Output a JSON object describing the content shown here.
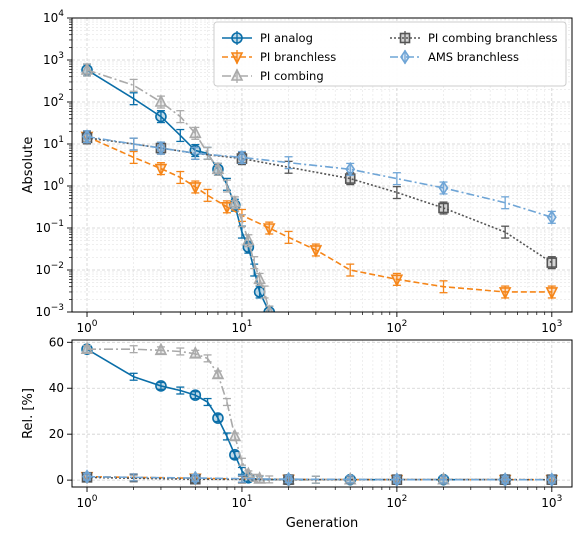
{
  "chart_data": [
    {
      "type": "line",
      "panel": "top",
      "ylabel": "Absolute",
      "xlabel": "",
      "xscale": "log",
      "yscale": "log",
      "xlim": [
        0.8,
        1350
      ],
      "ylim": [
        0.001,
        10000
      ],
      "grid": true,
      "legend_position": "top-right",
      "x_ticks": [
        {
          "value": 1,
          "base": "10",
          "exp": "0"
        },
        {
          "value": 10,
          "base": "10",
          "exp": "1"
        },
        {
          "value": 100,
          "base": "10",
          "exp": "2"
        },
        {
          "value": 1000,
          "base": "10",
          "exp": "3"
        }
      ],
      "y_ticks": [
        {
          "value": 0.001,
          "base": "10",
          "exp": "−3"
        },
        {
          "value": 0.01,
          "base": "10",
          "exp": "−2"
        },
        {
          "value": 0.1,
          "base": "10",
          "exp": "−1"
        },
        {
          "value": 1,
          "base": "10",
          "exp": "0"
        },
        {
          "value": 10,
          "base": "10",
          "exp": "1"
        },
        {
          "value": 100,
          "base": "10",
          "exp": "2"
        },
        {
          "value": 1000,
          "base": "10",
          "exp": "3"
        },
        {
          "value": 10000,
          "base": "10",
          "exp": "4"
        }
      ],
      "series": [
        {
          "name": "PI analog",
          "color": "#0a6ea8",
          "dash": "",
          "marker": "circle",
          "x": [
            1,
            2,
            3,
            4,
            5,
            6,
            7,
            8,
            9,
            10,
            11,
            12,
            13,
            15
          ],
          "y": [
            580,
            120,
            45,
            16,
            7,
            6,
            2.5,
            1.1,
            0.35,
            0.08,
            0.035,
            0.01,
            0.003,
            0.001
          ]
        },
        {
          "name": "PI branchless",
          "color": "#f58518",
          "dash": "6 3",
          "marker": "triangle-down",
          "x": [
            1,
            2,
            3,
            4,
            5,
            6,
            8,
            10,
            15,
            20,
            30,
            50,
            100,
            200,
            500,
            1000
          ],
          "y": [
            15,
            4.8,
            2.6,
            1.6,
            0.95,
            0.6,
            0.32,
            0.2,
            0.1,
            0.06,
            0.03,
            0.01,
            0.006,
            0.004,
            0.003,
            0.003
          ]
        },
        {
          "name": "PI combing",
          "color": "#aaaaaa",
          "dash": "9 3 2 3",
          "marker": "triangle-up",
          "x": [
            1,
            2,
            3,
            4,
            5,
            6,
            7,
            8,
            9,
            10,
            11,
            12,
            13,
            14,
            15
          ],
          "y": [
            580,
            250,
            100,
            45,
            18,
            6,
            2.5,
            1,
            0.4,
            0.15,
            0.05,
            0.015,
            0.006,
            0.003,
            0.001
          ]
        },
        {
          "name": "PI combing branchless",
          "color": "#555555",
          "dash": "2 2",
          "marker": "square",
          "x": [
            1,
            2,
            3,
            5,
            10,
            20,
            50,
            100,
            200,
            500,
            1000
          ],
          "y": [
            14,
            10,
            8,
            6,
            4.5,
            2.8,
            1.5,
            0.7,
            0.3,
            0.08,
            0.015
          ]
        },
        {
          "name": "AMS branchless",
          "color": "#6fa5d6",
          "dash": "8 3 2 3",
          "marker": "diamond",
          "x": [
            1,
            2,
            3,
            5,
            10,
            20,
            50,
            100,
            200,
            500,
            1000
          ],
          "y": [
            15,
            10,
            8,
            6,
            4.8,
            3.6,
            2.5,
            1.5,
            0.9,
            0.4,
            0.18
          ]
        }
      ]
    },
    {
      "type": "line",
      "panel": "bottom",
      "ylabel": "Rel. [%]",
      "xlabel": "Generation",
      "xscale": "log",
      "yscale": "linear",
      "xlim": [
        0.8,
        1350
      ],
      "ylim": [
        -3,
        61
      ],
      "grid": true,
      "x_ticks": [
        {
          "value": 1,
          "base": "10",
          "exp": "0"
        },
        {
          "value": 10,
          "base": "10",
          "exp": "1"
        },
        {
          "value": 100,
          "base": "10",
          "exp": "2"
        },
        {
          "value": 1000,
          "base": "10",
          "exp": "3"
        }
      ],
      "y_ticks": [
        {
          "value": 0,
          "label": "0"
        },
        {
          "value": 20,
          "label": "20"
        },
        {
          "value": 40,
          "label": "40"
        },
        {
          "value": 60,
          "label": "60"
        }
      ],
      "series": [
        {
          "name": "PI analog",
          "color": "#0a6ea8",
          "dash": "",
          "marker": "circle",
          "x": [
            1,
            2,
            3,
            4,
            5,
            6,
            7,
            8,
            9,
            10,
            11,
            13,
            20,
            30,
            50,
            100,
            200,
            500
          ],
          "y": [
            57,
            45,
            41,
            39,
            37,
            34,
            27,
            19,
            11,
            4,
            1,
            0.3,
            0.2,
            0.2,
            0.2,
            0.2,
            0.2,
            0.2
          ]
        },
        {
          "name": "PI branchless",
          "color": "#f58518",
          "dash": "6 3",
          "marker": "triangle-down",
          "x": [
            1,
            2,
            5,
            10,
            20,
            50,
            100,
            200,
            500,
            1000
          ],
          "y": [
            1.5,
            1.2,
            0.8,
            0.5,
            0.3,
            0.2,
            0.2,
            0.2,
            0.2,
            0.2
          ]
        },
        {
          "name": "PI combing",
          "color": "#aaaaaa",
          "dash": "9 3 2 3",
          "marker": "triangle-up",
          "x": [
            1,
            2,
            3,
            4,
            5,
            6,
            7,
            8,
            9,
            10,
            11,
            12,
            13,
            15,
            20,
            30,
            50,
            100,
            200,
            500
          ],
          "y": [
            57,
            57,
            56.5,
            56,
            55,
            53,
            46,
            34,
            19,
            8,
            2.5,
            1,
            0.5,
            0.3,
            0.2,
            0.2,
            0.2,
            0.2,
            0.2,
            0.2
          ]
        },
        {
          "name": "PI combing branchless",
          "color": "#555555",
          "dash": "2 2",
          "marker": "square",
          "x": [
            1,
            2,
            5,
            10,
            20,
            50,
            100,
            200,
            500,
            1000
          ],
          "y": [
            1.2,
            0.8,
            0.4,
            0.3,
            0.2,
            0.2,
            0.2,
            0.2,
            0.2,
            0.2
          ]
        },
        {
          "name": "AMS branchless",
          "color": "#6fa5d6",
          "dash": "8 3 2 3",
          "marker": "diamond",
          "x": [
            1,
            2,
            5,
            10,
            20,
            50,
            100,
            200,
            500,
            1000
          ],
          "y": [
            1.5,
            1.2,
            0.9,
            0.6,
            0.4,
            0.3,
            0.2,
            0.2,
            0.2,
            0.2
          ]
        }
      ]
    }
  ]
}
